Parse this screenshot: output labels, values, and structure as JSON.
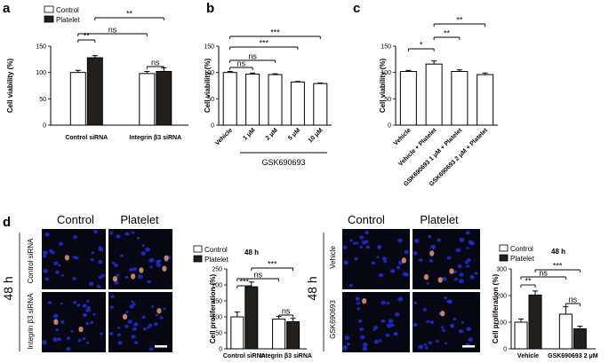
{
  "panels": {
    "a": "a",
    "b": "b",
    "c": "c",
    "d": "d"
  },
  "colors": {
    "control_fill": "#ffffff",
    "platelet_fill": "#231f1c",
    "axis": "#000000",
    "micro_bg": "#070714",
    "nucleus": "#1f2ecf",
    "stain": "#d99070"
  },
  "legend": {
    "control": "Control",
    "platelet": "Platelet"
  },
  "chart_data": [
    {
      "id": "a",
      "type": "bar",
      "ylabel": "Cell viability (%)",
      "xlabel": "",
      "ylim": [
        0,
        150
      ],
      "yticks": [
        "0",
        "50",
        "100",
        "150"
      ],
      "categories": [
        "Control siRNA",
        "Integrin β3 siRNA"
      ],
      "series": [
        {
          "name": "Control",
          "values": [
            100,
            98
          ],
          "errors": [
            4,
            4
          ]
        },
        {
          "name": "Platelet",
          "values": [
            128,
            102
          ],
          "errors": [
            4,
            7
          ]
        }
      ],
      "significance": [
        "**",
        "ns",
        "ns",
        "**"
      ]
    },
    {
      "id": "b",
      "type": "bar",
      "ylabel": "Cell viability (%)",
      "xlabel": "GSK690693",
      "ylim": [
        0,
        150
      ],
      "yticks": [
        "0",
        "50",
        "100",
        "150"
      ],
      "categories": [
        "Vehicle",
        "1 μM",
        "2 μM",
        "5 μM",
        "10 μM"
      ],
      "values": [
        100,
        97,
        96,
        82,
        79
      ],
      "errors": [
        2,
        2,
        1.5,
        1,
        1
      ],
      "significance": [
        "ns",
        "ns",
        "***",
        "***"
      ]
    },
    {
      "id": "c",
      "type": "bar",
      "ylabel": "Cell viability (%)",
      "xlabel": "",
      "ylim": [
        0,
        150
      ],
      "yticks": [
        "0",
        "50",
        "100",
        "150"
      ],
      "categories": [
        "Vehicle",
        "Vehicle + Platelet",
        "GSK690693 1 μM + Platelet",
        "GSK690693 2 μM + Platelet"
      ],
      "values": [
        102,
        116,
        102,
        96
      ],
      "errors": [
        2,
        6,
        3,
        3
      ],
      "significance": [
        "*",
        "**",
        "**"
      ]
    },
    {
      "id": "d1",
      "type": "bar",
      "title": "48 h",
      "ylabel": "Cell proliferation (%)",
      "xlabel": "",
      "ylim": [
        0,
        250
      ],
      "yticks": [
        "0",
        "50",
        "100",
        "150",
        "200",
        "250"
      ],
      "categories": [
        "Control siRNA",
        "Integrin β3 siRNA"
      ],
      "series": [
        {
          "name": "Control",
          "values": [
            100,
            93
          ],
          "errors": [
            15,
            8
          ]
        },
        {
          "name": "Platelet",
          "values": [
            194,
            85
          ],
          "errors": [
            15,
            10
          ]
        }
      ],
      "significance": [
        "***",
        "ns",
        "ns",
        "***"
      ]
    },
    {
      "id": "d2",
      "type": "bar",
      "title": "48 h",
      "ylabel": "Cell proliferation (%)",
      "xlabel": "",
      "ylim": [
        0,
        300
      ],
      "yticks": [
        "0",
        "100",
        "200",
        "300"
      ],
      "categories": [
        "Vehicle",
        "GSK690693 2 μM"
      ],
      "series": [
        {
          "name": "Control",
          "values": [
            100,
            130
          ],
          "errors": [
            12,
            28
          ]
        },
        {
          "name": "Platelet",
          "values": [
            202,
            75
          ],
          "errors": [
            15,
            10
          ]
        }
      ],
      "significance": [
        "**",
        "ns",
        "ns",
        "***"
      ]
    }
  ],
  "micrographs": {
    "left": {
      "col_titles": [
        "Control",
        "Platelet"
      ],
      "row_labels": [
        "Control siRNA",
        "Integrin β3 siRNA"
      ],
      "time_label": "48 h"
    },
    "right": {
      "col_titles": [
        "Control",
        "Platelet"
      ],
      "row_labels": [
        "Vehicle",
        "GSK690693"
      ],
      "time_label": "48 h"
    }
  }
}
